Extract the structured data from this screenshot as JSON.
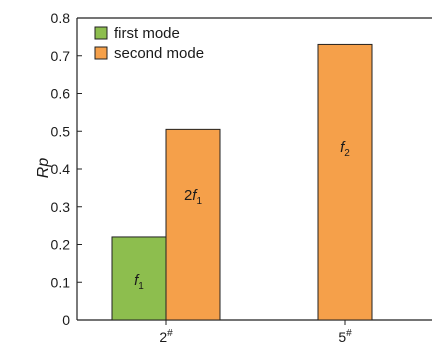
{
  "chart_data": {
    "type": "bar",
    "ylabel": "Rp",
    "xlabel": "",
    "ylim": [
      0,
      0.8
    ],
    "yticks": [
      "0",
      "0.1",
      "0.2",
      "0.3",
      "0.4",
      "0.5",
      "0.6",
      "0.7",
      "0.8"
    ],
    "categories": [
      "2#",
      "5#"
    ],
    "series": [
      {
        "name": "first mode",
        "color": "#8dbe4e",
        "values": [
          0.22,
          null
        ]
      },
      {
        "name": "second mode",
        "color": "#f5a04a",
        "values": [
          0.505,
          0.73
        ]
      }
    ],
    "bar_labels": [
      {
        "category": 0,
        "series": 0,
        "prefix": "",
        "main": "f",
        "sub": "1"
      },
      {
        "category": 0,
        "series": 1,
        "prefix": "2",
        "main": "f",
        "sub": "1"
      },
      {
        "category": 1,
        "series": 1,
        "prefix": "",
        "main": "f",
        "sub": "2"
      }
    ],
    "legend_position": "top-left",
    "grid": false
  }
}
